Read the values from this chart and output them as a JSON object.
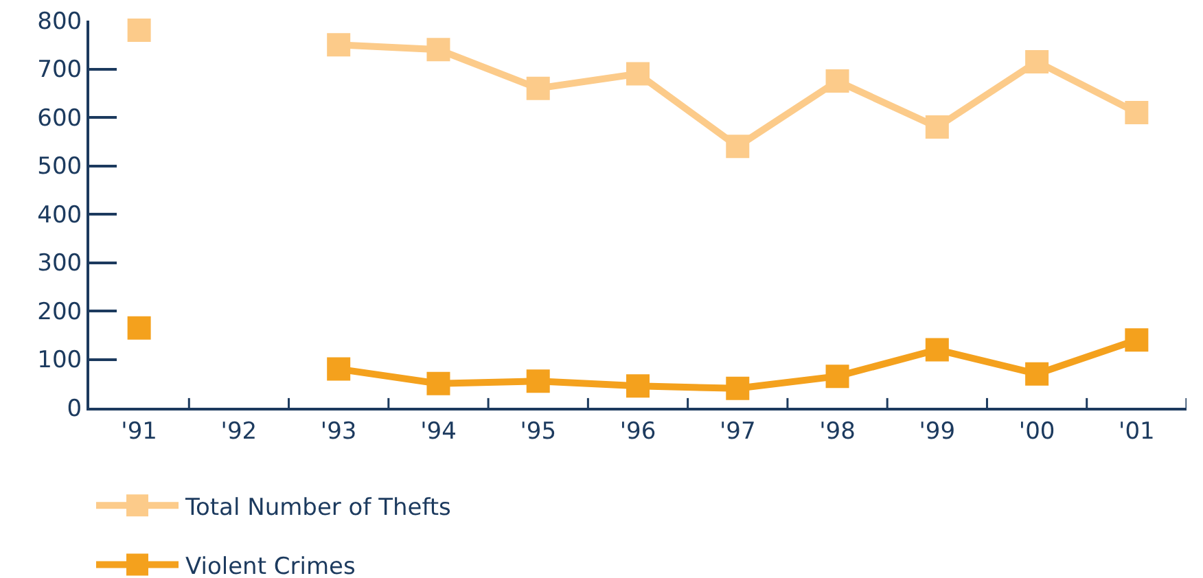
{
  "chart_data": {
    "type": "line",
    "categories": [
      "'91",
      "'92",
      "'93",
      "'94",
      "'95",
      "'96",
      "'97",
      "'98",
      "'99",
      "'00",
      "'01"
    ],
    "series": [
      {
        "name": "Total Number of Thefts",
        "color": "#fccb8a",
        "values": [
          780,
          null,
          750,
          740,
          660,
          690,
          540,
          675,
          580,
          715,
          610
        ]
      },
      {
        "name": "Violent Crimes",
        "color": "#f4a11d",
        "values": [
          165,
          null,
          80,
          50,
          55,
          45,
          40,
          65,
          120,
          70,
          140
        ]
      }
    ],
    "ylim": [
      0,
      800
    ],
    "yticks": [
      0,
      100,
      200,
      300,
      400,
      500,
      600,
      700,
      800
    ],
    "legend": "bottom left",
    "marker": "square",
    "line_style": "solid"
  }
}
